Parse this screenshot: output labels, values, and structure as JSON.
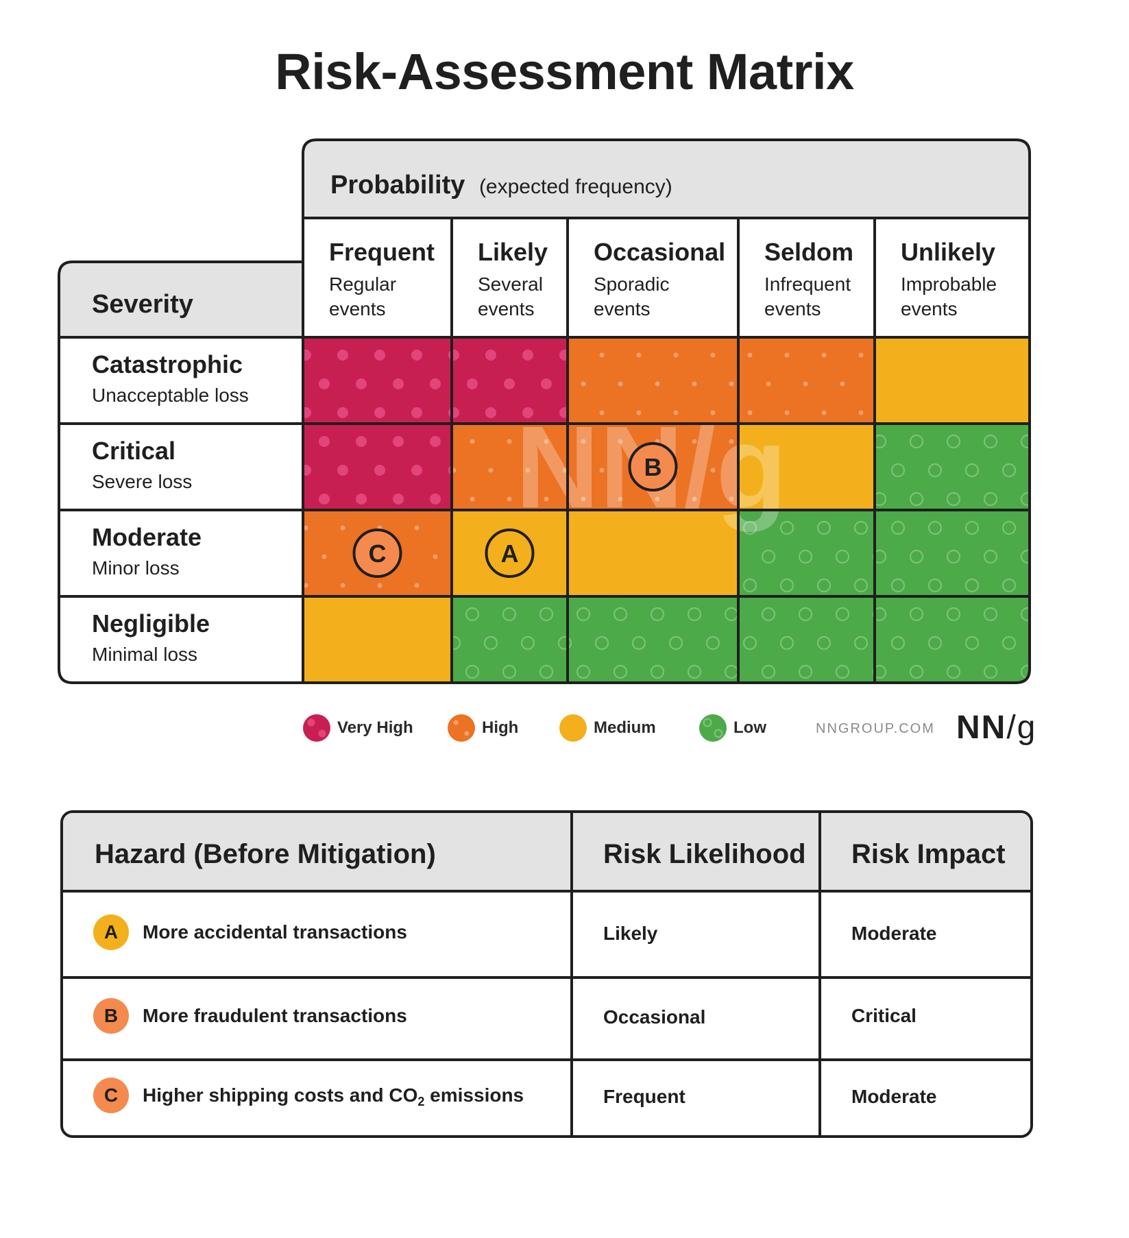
{
  "title": "Risk-Assessment Matrix",
  "matrix": {
    "probability_header": {
      "label": "Probability",
      "note": "(expected frequency)"
    },
    "severity_header": "Severity",
    "columns": [
      {
        "name": "Frequent",
        "desc1": "Regular",
        "desc2": "events"
      },
      {
        "name": "Likely",
        "desc1": "Several",
        "desc2": "events"
      },
      {
        "name": "Occasional",
        "desc1": "Sporadic",
        "desc2": "events"
      },
      {
        "name": "Seldom",
        "desc1": "Infrequent",
        "desc2": "events"
      },
      {
        "name": "Unlikely",
        "desc1": "Improbable",
        "desc2": "events"
      }
    ],
    "rows": [
      {
        "name": "Catastrophic",
        "desc": "Unacceptable loss",
        "levels": [
          "vh",
          "vh",
          "h",
          "h",
          "m"
        ]
      },
      {
        "name": "Critical",
        "desc": "Severe loss",
        "levels": [
          "vh",
          "h",
          "h",
          "m",
          "l"
        ]
      },
      {
        "name": "Moderate",
        "desc": "Minor loss",
        "levels": [
          "h",
          "m",
          "m",
          "l",
          "l"
        ]
      },
      {
        "name": "Negligible",
        "desc": "Minimal loss",
        "levels": [
          "m",
          "l",
          "l",
          "l",
          "l"
        ]
      }
    ],
    "markers": [
      {
        "label": "A",
        "row": 2,
        "col": 1,
        "color": "#f3b01c"
      },
      {
        "label": "B",
        "row": 1,
        "col": 2,
        "color": "#f58a4e"
      },
      {
        "label": "C",
        "row": 2,
        "col": 0,
        "color": "#f58a4e"
      }
    ],
    "watermark": "NN/g"
  },
  "legend": [
    {
      "key": "vh",
      "label": "Very High",
      "color": "#c81f52"
    },
    {
      "key": "h",
      "label": "High",
      "color": "#ec7224"
    },
    {
      "key": "m",
      "label": "Medium",
      "color": "#f3b01c"
    },
    {
      "key": "l",
      "label": "Low",
      "color": "#4caa49"
    }
  ],
  "brand": {
    "site": "NNGROUP.COM",
    "logo_nn": "NN",
    "logo_slash": "/",
    "logo_g": "g"
  },
  "hazard_table": {
    "headers": {
      "hazard": "Hazard (Before Mitigation)",
      "likelihood": "Risk Likelihood",
      "impact": "Risk Impact"
    },
    "rows": [
      {
        "badge": "A",
        "badge_color": "#f3b01c",
        "hazard": "More accidental transactions",
        "likelihood": "Likely",
        "impact": "Moderate"
      },
      {
        "badge": "B",
        "badge_color": "#f58a4e",
        "hazard": "More fraudulent transactions",
        "likelihood": "Occasional",
        "impact": "Critical"
      },
      {
        "badge": "C",
        "badge_color": "#f58a4e",
        "hazard_pre": "Higher shipping costs and CO",
        "hazard_sub": "2",
        "hazard_post": " emissions",
        "likelihood": "Frequent",
        "impact": "Moderate"
      }
    ]
  }
}
